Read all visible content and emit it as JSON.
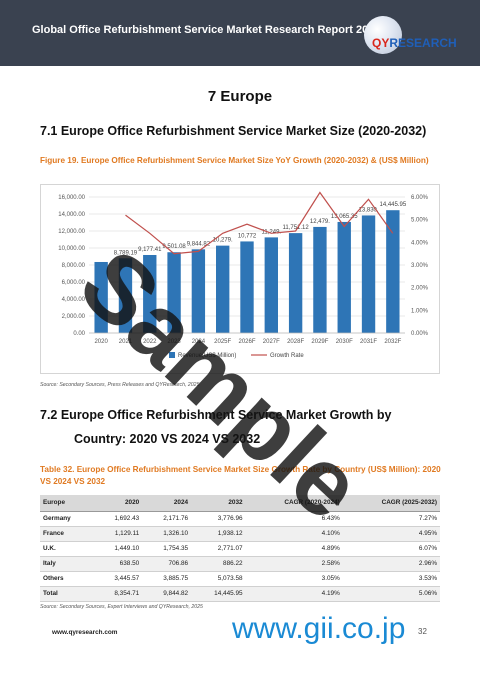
{
  "header": {
    "title": "Global Office Refurbishment Service Market Research Report 2025",
    "logo_text_a": "QY",
    "logo_text_b": "RESEARCH"
  },
  "chapter": {
    "title": "7  Europe"
  },
  "section1": {
    "title": "7.1  Europe Office Refurbishment Service Market Size (2020-2032)",
    "figure_caption": "Figure 19.   Europe Office Refurbishment Service Market Size YoY Growth (2020-2032) & (US$ Million)",
    "source": "Source: Secondary Sources, Press Releases and QYResearch, 2025"
  },
  "chart_data": {
    "type": "bar",
    "categories": [
      "2020",
      "2021",
      "2022",
      "2023",
      "2024",
      "2025F",
      "2026F",
      "2027F",
      "2028F",
      "2029F",
      "2030F",
      "2031F",
      "2032F"
    ],
    "series": [
      {
        "name": "Revenue(US$ Million)",
        "type": "bar",
        "axis": "left",
        "values": [
          8354.71,
          8789.19,
          9177.41,
          9501.08,
          9844.82,
          10279.0,
          10772.0,
          11249.0,
          11751.0,
          12479.0,
          13065.0,
          13830.0,
          14445.95
        ],
        "labels": [
          "",
          "8,789.19",
          "9,177.41",
          "9,501.08",
          "9,844.82",
          "10,279.",
          "10,772",
          "11,249.",
          "11,751.12",
          "12,479.",
          "13,065.35",
          "13,830.",
          "14,445.95"
        ]
      },
      {
        "name": "Growth Rate",
        "type": "line",
        "axis": "right",
        "values": [
          null,
          5.2,
          4.4,
          3.5,
          3.6,
          4.4,
          4.8,
          4.4,
          4.5,
          6.2,
          4.7,
          5.9,
          4.4
        ]
      }
    ],
    "y_left": {
      "min": 0,
      "max": 16000,
      "ticks": [
        "0.00",
        "2,000.00",
        "4,000.00",
        "6,000.00",
        "8,000.00",
        "10,000.00",
        "12,000.00",
        "14,000.00",
        "16,000.00"
      ]
    },
    "y_right": {
      "min": 0,
      "max": 6,
      "ticks": [
        "0.00%",
        "1.00%",
        "2.00%",
        "3.00%",
        "4.00%",
        "5.00%",
        "6.00%"
      ]
    },
    "legend": {
      "placement": "bottom",
      "items": [
        "Revenue(US$ Million)",
        "Growth Rate"
      ]
    },
    "colors": {
      "bar": "#2e75b6",
      "line": "#c0504d"
    },
    "grid": true
  },
  "section2": {
    "title": "7.2  Europe Office Refurbishment Service Market Growth by",
    "title_line2": "Country: 2020 VS 2024 VS 2032",
    "table_caption": "Table 32.   Europe Office Refurbishment Service Market Size Growth Rate by Country (US$ Million): 2020 VS 2024 VS 2032",
    "source": "Source: Secondary Sources, Expert Interviews and QYResearch, 2025"
  },
  "table": {
    "headers": [
      "Europe",
      "2020",
      "2024",
      "2032",
      "CAGR (2020-2024)",
      "CAGR (2025-2032)"
    ],
    "rows": [
      [
        "Germany",
        "1,692.43",
        "2,171.76",
        "3,776.96",
        "6.43%",
        "7.27%"
      ],
      [
        "France",
        "1,129.11",
        "1,326.10",
        "1,938.12",
        "4.10%",
        "4.95%"
      ],
      [
        "U.K.",
        "1,449.10",
        "1,754.35",
        "2,771.07",
        "4.89%",
        "6.07%"
      ],
      [
        "Italy",
        "638.50",
        "706.86",
        "886.22",
        "2.58%",
        "2.96%"
      ],
      [
        "Others",
        "3,445.57",
        "3,885.75",
        "5,073.58",
        "3.05%",
        "3.53%"
      ],
      [
        "Total",
        "8,354.71",
        "9,844.82",
        "14,445.95",
        "4.19%",
        "5.06%"
      ]
    ]
  },
  "footer": {
    "url": "www.qyresearch.com",
    "page": "32"
  },
  "watermarks": {
    "sample": "Sample",
    "gii": "www.gii.co.jp"
  }
}
